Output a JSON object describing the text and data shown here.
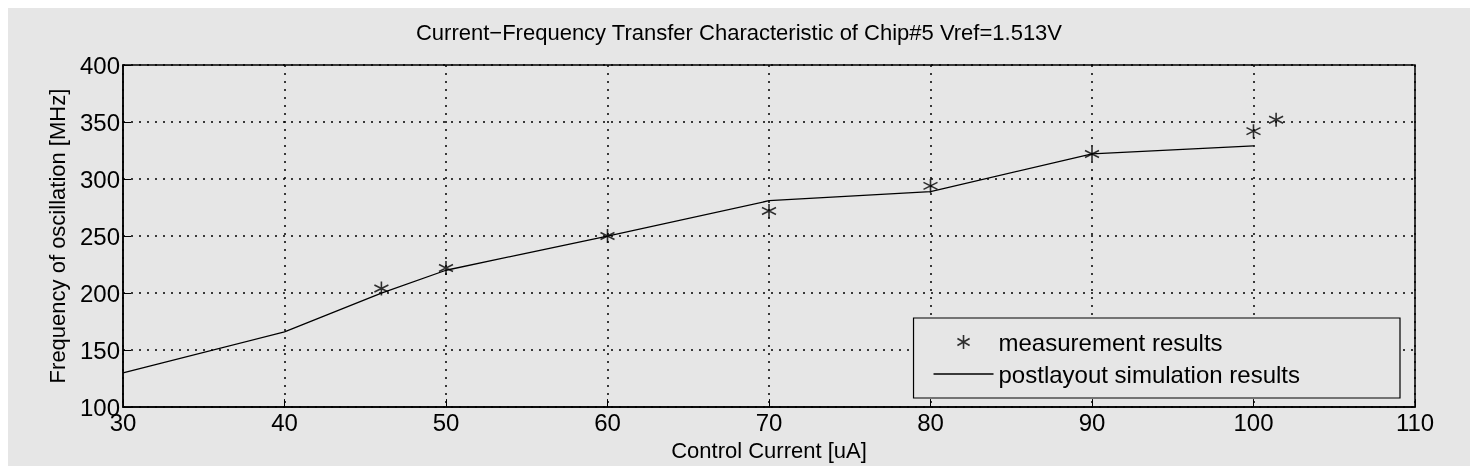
{
  "chart_data": {
    "type": "scatter",
    "title": "Current−Frequency Transfer Characteristic of Chip#5 Vref=1.513V",
    "xlabel": "Control Current [uA]",
    "ylabel": "Frequency of oscillation [MHz]",
    "xlim": [
      30,
      110
    ],
    "xticks": [
      30,
      40,
      50,
      60,
      70,
      80,
      90,
      100,
      110
    ],
    "ylim": [
      100,
      400
    ],
    "yticks": [
      100,
      150,
      200,
      250,
      300,
      350,
      400
    ],
    "grid": true,
    "legend": "bottom right",
    "series": [
      {
        "name": "measurement results",
        "marker": "cross",
        "color": "#000000",
        "x": [
          46,
          50,
          60,
          70,
          80,
          90,
          100,
          101.4
        ],
        "values": [
          204,
          222,
          250,
          272,
          294,
          322,
          342,
          352
        ]
      },
      {
        "name": "postlayout simulation results",
        "type": "line",
        "marker": "none",
        "line_style": "solid",
        "color": "#000000",
        "x": [
          30,
          40,
          46,
          50,
          60,
          70,
          80,
          90,
          100
        ],
        "values": [
          130,
          166,
          200,
          220,
          250,
          281,
          289,
          322,
          329
        ]
      }
    ]
  }
}
